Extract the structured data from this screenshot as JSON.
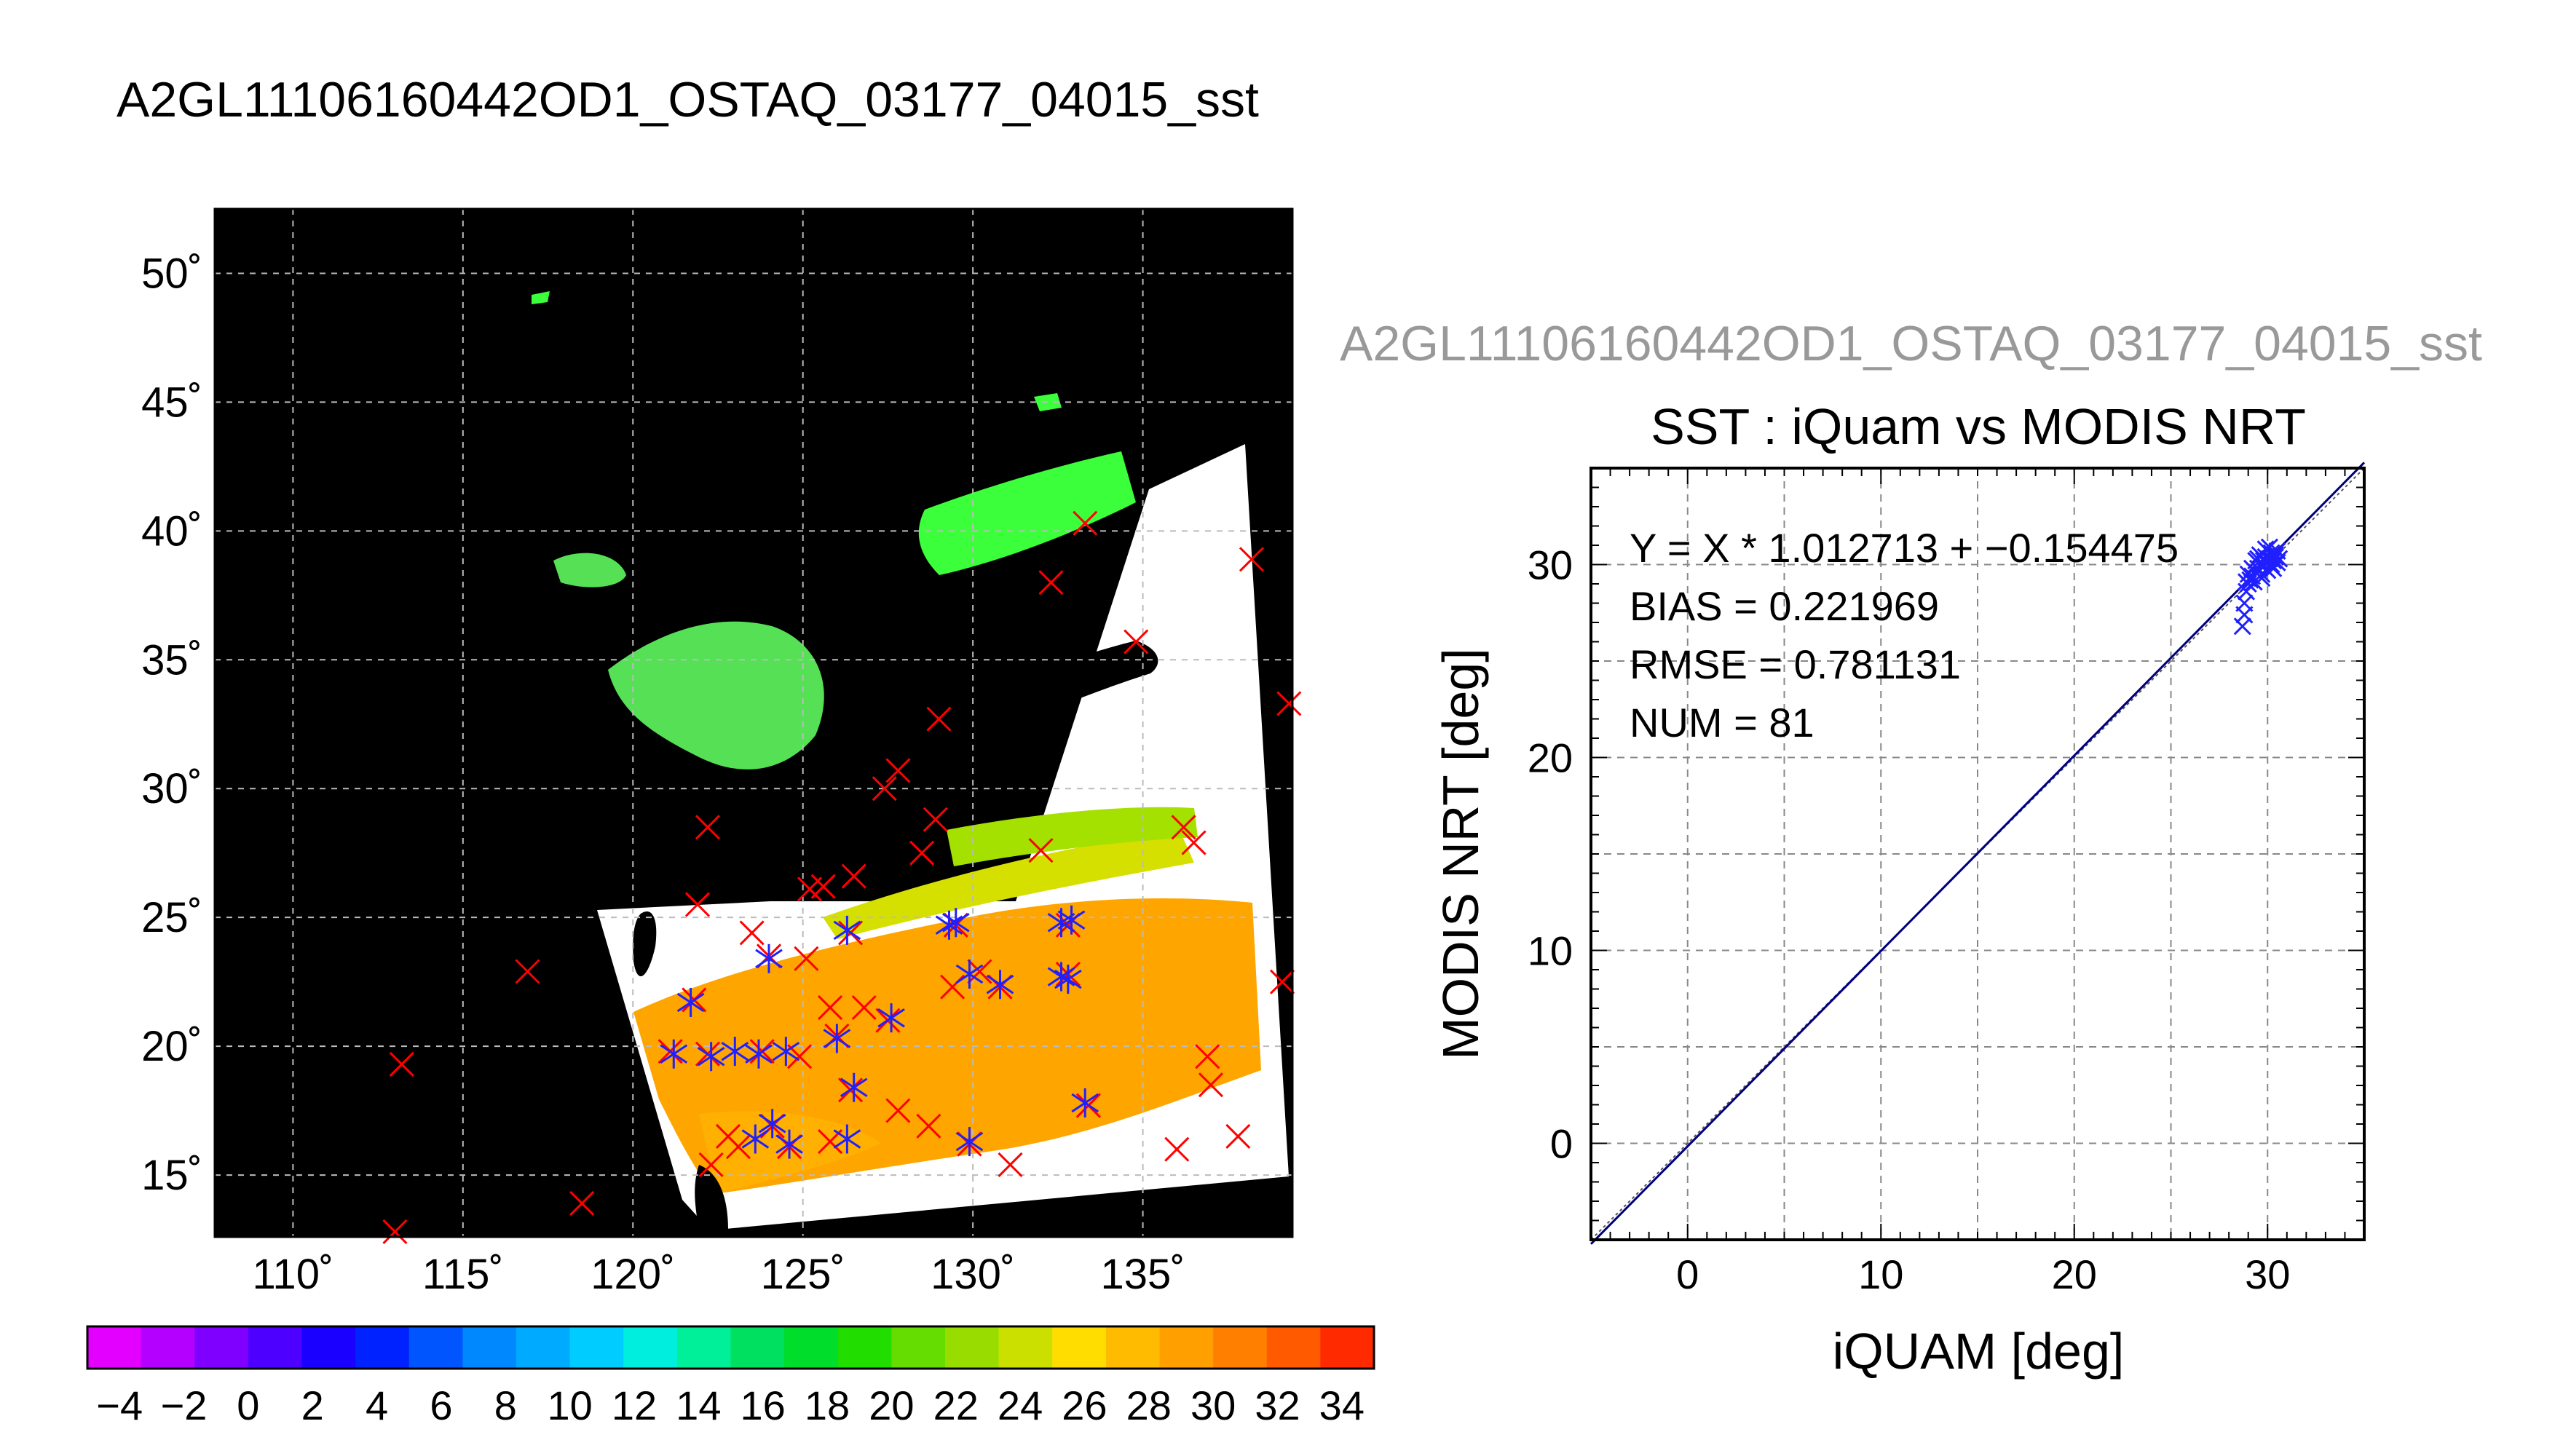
{
  "figure_title": "A2GL11106160442OD1_OSTAQ_03177_04015_sst",
  "map": {
    "lon_ticks": [
      "110˚",
      "115˚",
      "120˚",
      "125˚",
      "130˚",
      "135˚"
    ],
    "lat_ticks": [
      "15˚",
      "20˚",
      "25˚",
      "30˚",
      "35˚",
      "40˚",
      "45˚",
      "50˚"
    ],
    "colorbar_ticks": [
      "−4",
      "−2",
      "0",
      "2",
      "4",
      "6",
      "8",
      "10",
      "12",
      "14",
      "16",
      "18",
      "20",
      "22",
      "24",
      "26",
      "28",
      "30",
      "32",
      "34"
    ],
    "colorbar_colors": [
      "#e400ff",
      "#b300ff",
      "#8000ff",
      "#4d00ff",
      "#1a00ff",
      "#0022ff",
      "#0055ff",
      "#0088ff",
      "#00aaff",
      "#00ccff",
      "#00eedd",
      "#00f09a",
      "#00e060",
      "#00dd2a",
      "#22dd00",
      "#66dd00",
      "#99dd00",
      "#cce000",
      "#ffdd00",
      "#ffbb00",
      "#ffa000",
      "#ff7f00",
      "#ff5a00",
      "#ff2a00"
    ],
    "colors": {
      "ocean_no_data": "#000000",
      "cloud": "#ffffff",
      "warm_sst": "#ffa500",
      "cool_sst": "#3cff3c",
      "iquam_marker": "#ff0000",
      "matched_marker": "#2020ff"
    }
  },
  "scatter": {
    "file_label": "A2GL11106160442OD1_OSTAQ_03177_04015_sst",
    "title": "SST : iQuam vs MODIS NRT",
    "xlabel": "iQUAM [deg]",
    "ylabel": "MODIS NRT [deg]",
    "x_ticks": [
      "0",
      "10",
      "20",
      "30"
    ],
    "y_ticks": [
      "0",
      "10",
      "20",
      "30"
    ],
    "stats": {
      "fit": "Y = X * 1.012713 + −0.154475",
      "bias": "BIAS = 0.221969",
      "rmse": "RMSE = 0.781131",
      "num": "NUM = 81"
    }
  },
  "chart_data": [
    {
      "type": "heatmap",
      "title": "A2GL11106160442OD1_OSTAQ_03177_04015_sst",
      "xlabel": "",
      "ylabel": "",
      "xlim": [
        107.7,
        139.4
      ],
      "ylim": [
        12.6,
        52.5
      ],
      "colorbar_range": [
        -5,
        35
      ],
      "iquam_points": [
        [
          113.2,
          19.3
        ],
        [
          116.9,
          22.9
        ],
        [
          118.5,
          13.9
        ],
        [
          113.0,
          12.8
        ],
        [
          121.8,
          21.8
        ],
        [
          122.2,
          28.5
        ],
        [
          121.9,
          25.5
        ],
        [
          123.5,
          24.4
        ],
        [
          124.0,
          23.5
        ],
        [
          125.2,
          26.1
        ],
        [
          125.6,
          26.2
        ],
        [
          126.5,
          26.6
        ],
        [
          126.4,
          24.4
        ],
        [
          125.8,
          21.5
        ],
        [
          126.8,
          21.5
        ],
        [
          127.5,
          21.0
        ],
        [
          127.4,
          30.0
        ],
        [
          127.8,
          30.7
        ],
        [
          128.5,
          27.5
        ],
        [
          128.9,
          28.8
        ],
        [
          129.0,
          32.7
        ],
        [
          129.5,
          24.7
        ],
        [
          130.2,
          22.9
        ],
        [
          130.8,
          22.3
        ],
        [
          132.0,
          27.6
        ],
        [
          132.8,
          24.7
        ],
        [
          132.3,
          38.0
        ],
        [
          133.3,
          40.3
        ],
        [
          134.8,
          35.7
        ],
        [
          136.2,
          28.5
        ],
        [
          136.5,
          27.9
        ],
        [
          136.9,
          19.6
        ],
        [
          137.0,
          18.5
        ],
        [
          136.0,
          16.0
        ],
        [
          137.8,
          16.5
        ],
        [
          138.2,
          38.9
        ],
        [
          139.3,
          33.3
        ],
        [
          139.1,
          22.5
        ],
        [
          121.1,
          19.8
        ],
        [
          122.2,
          19.7
        ],
        [
          123.8,
          19.8
        ],
        [
          124.9,
          19.6
        ],
        [
          126.0,
          20.4
        ],
        [
          126.4,
          18.3
        ],
        [
          127.8,
          17.5
        ],
        [
          124.1,
          16.9
        ],
        [
          123.1,
          16.1
        ],
        [
          122.3,
          15.4
        ],
        [
          122.8,
          16.5
        ],
        [
          124.6,
          16.1
        ],
        [
          125.8,
          16.3
        ],
        [
          128.7,
          16.9
        ],
        [
          129.9,
          16.2
        ],
        [
          131.1,
          15.4
        ],
        [
          133.4,
          17.7
        ],
        [
          132.8,
          22.8
        ],
        [
          129.4,
          22.3
        ],
        [
          125.1,
          23.4
        ]
      ],
      "matched_points": [
        [
          121.2,
          19.7
        ],
        [
          121.7,
          21.7
        ],
        [
          122.3,
          19.6
        ],
        [
          123.0,
          19.8
        ],
        [
          123.7,
          19.7
        ],
        [
          124.5,
          19.8
        ],
        [
          126.0,
          20.3
        ],
        [
          126.3,
          24.5
        ],
        [
          126.5,
          18.4
        ],
        [
          127.6,
          21.1
        ],
        [
          124.0,
          23.4
        ],
        [
          124.1,
          17.0
        ],
        [
          123.6,
          16.4
        ],
        [
          124.6,
          16.2
        ],
        [
          126.3,
          16.4
        ],
        [
          129.3,
          24.7
        ],
        [
          129.5,
          24.8
        ],
        [
          129.9,
          22.8
        ],
        [
          130.8,
          22.4
        ],
        [
          129.9,
          16.3
        ],
        [
          132.6,
          24.8
        ],
        [
          132.8,
          22.6
        ],
        [
          132.6,
          22.7
        ],
        [
          133.3,
          17.8
        ],
        [
          132.9,
          24.9
        ]
      ]
    },
    {
      "type": "scatter",
      "title": "SST : iQuam vs MODIS NRT",
      "xlabel": "iQUAM [deg]",
      "ylabel": "MODIS NRT [deg]",
      "xlim": [
        -5,
        35
      ],
      "ylim": [
        -5,
        35
      ],
      "fit_slope": 1.012713,
      "fit_intercept": -0.154475,
      "bias": 0.221969,
      "rmse": 0.781131,
      "num": 81,
      "points": [
        [
          28.7,
          26.8
        ],
        [
          28.8,
          27.4
        ],
        [
          28.8,
          28.0
        ],
        [
          28.9,
          28.6
        ],
        [
          29.0,
          29.0
        ],
        [
          29.1,
          29.2
        ],
        [
          29.2,
          29.4
        ],
        [
          29.3,
          29.1
        ],
        [
          29.4,
          29.6
        ],
        [
          29.5,
          29.8
        ],
        [
          29.6,
          30.0
        ],
        [
          29.7,
          29.5
        ],
        [
          29.8,
          30.2
        ],
        [
          29.8,
          29.9
        ],
        [
          29.9,
          30.4
        ],
        [
          30.0,
          30.1
        ],
        [
          30.0,
          29.7
        ],
        [
          30.1,
          30.3
        ],
        [
          30.2,
          30.6
        ],
        [
          30.2,
          30.0
        ],
        [
          30.3,
          30.2
        ],
        [
          30.4,
          30.5
        ],
        [
          30.5,
          30.1
        ],
        [
          30.5,
          30.7
        ],
        [
          30.6,
          30.3
        ],
        [
          29.6,
          30.5
        ],
        [
          29.9,
          30.8
        ],
        [
          30.1,
          30.9
        ],
        [
          29.4,
          30.2
        ],
        [
          29.2,
          29.8
        ],
        [
          29.0,
          29.5
        ],
        [
          29.7,
          29.3
        ],
        [
          30.3,
          29.8
        ],
        [
          30.4,
          30.4
        ],
        [
          29.5,
          30.3
        ],
        [
          28.9,
          29.1
        ]
      ]
    }
  ]
}
